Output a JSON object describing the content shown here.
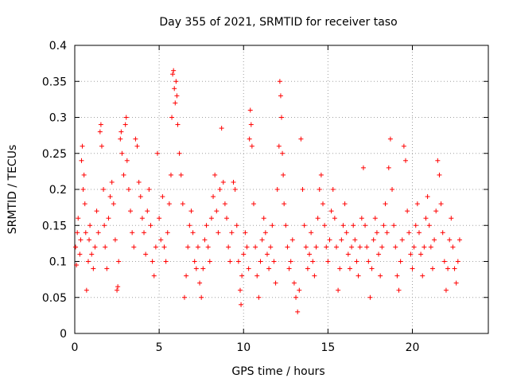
{
  "chart_data": {
    "type": "scatter",
    "title": "Day 355 of 2021, SRMTID for receiver taso",
    "xlabel": "GPS time / hours",
    "ylabel": "SRMTID / TECUs",
    "xlim": [
      0,
      24.5
    ],
    "ylim": [
      0,
      0.4
    ],
    "xticks": [
      0,
      5,
      10,
      15,
      20
    ],
    "xtick_labels": [
      "0",
      "5",
      "10",
      "15",
      "20"
    ],
    "yticks": [
      0,
      0.05,
      0.1,
      0.15,
      0.2,
      0.25,
      0.3,
      0.35,
      0.4
    ],
    "ytick_labels": [
      "0",
      "0.05",
      "0.1",
      "0.15",
      "0.2",
      "0.25",
      "0.3",
      "0.35",
      "0.4"
    ],
    "grid": true,
    "marker": "plus",
    "color": "#ff0000",
    "series": [
      {
        "name": "SRMTID",
        "points": [
          [
            0.05,
            0.12
          ],
          [
            0.1,
            0.095
          ],
          [
            0.15,
            0.14
          ],
          [
            0.2,
            0.16
          ],
          [
            0.3,
            0.11
          ],
          [
            0.35,
            0.13
          ],
          [
            0.4,
            0.24
          ],
          [
            0.45,
            0.26
          ],
          [
            0.5,
            0.2
          ],
          [
            0.55,
            0.22
          ],
          [
            0.6,
            0.18
          ],
          [
            0.65,
            0.14
          ],
          [
            0.7,
            0.06
          ],
          [
            0.8,
            0.1
          ],
          [
            0.85,
            0.13
          ],
          [
            0.9,
            0.15
          ],
          [
            1.0,
            0.11
          ],
          [
            1.1,
            0.09
          ],
          [
            1.2,
            0.12
          ],
          [
            1.3,
            0.17
          ],
          [
            1.4,
            0.14
          ],
          [
            1.5,
            0.28
          ],
          [
            1.55,
            0.29
          ],
          [
            1.6,
            0.26
          ],
          [
            1.7,
            0.2
          ],
          [
            1.75,
            0.15
          ],
          [
            1.8,
            0.12
          ],
          [
            1.9,
            0.09
          ],
          [
            2.0,
            0.16
          ],
          [
            2.1,
            0.19
          ],
          [
            2.2,
            0.21
          ],
          [
            2.3,
            0.18
          ],
          [
            2.4,
            0.13
          ],
          [
            2.5,
            0.06
          ],
          [
            2.55,
            0.065
          ],
          [
            2.6,
            0.1
          ],
          [
            2.7,
            0.27
          ],
          [
            2.75,
            0.28
          ],
          [
            2.8,
            0.25
          ],
          [
            2.9,
            0.22
          ],
          [
            3.0,
            0.29
          ],
          [
            3.05,
            0.3
          ],
          [
            3.1,
            0.24
          ],
          [
            3.2,
            0.2
          ],
          [
            3.3,
            0.17
          ],
          [
            3.4,
            0.14
          ],
          [
            3.5,
            0.12
          ],
          [
            3.6,
            0.27
          ],
          [
            3.7,
            0.26
          ],
          [
            3.8,
            0.21
          ],
          [
            3.9,
            0.19
          ],
          [
            4.0,
            0.16
          ],
          [
            4.1,
            0.14
          ],
          [
            4.2,
            0.11
          ],
          [
            4.3,
            0.17
          ],
          [
            4.4,
            0.2
          ],
          [
            4.5,
            0.15
          ],
          [
            4.6,
            0.1
          ],
          [
            4.7,
            0.08
          ],
          [
            4.8,
            0.12
          ],
          [
            4.9,
            0.25
          ],
          [
            5.0,
            0.16
          ],
          [
            5.1,
            0.13
          ],
          [
            5.2,
            0.19
          ],
          [
            5.3,
            0.12
          ],
          [
            5.4,
            0.1
          ],
          [
            5.5,
            0.14
          ],
          [
            5.6,
            0.18
          ],
          [
            5.7,
            0.22
          ],
          [
            5.75,
            0.3
          ],
          [
            5.8,
            0.36
          ],
          [
            5.85,
            0.365
          ],
          [
            5.9,
            0.34
          ],
          [
            5.95,
            0.32
          ],
          [
            6.0,
            0.35
          ],
          [
            6.05,
            0.33
          ],
          [
            6.1,
            0.29
          ],
          [
            6.2,
            0.25
          ],
          [
            6.3,
            0.22
          ],
          [
            6.4,
            0.18
          ],
          [
            6.5,
            0.05
          ],
          [
            6.6,
            0.08
          ],
          [
            6.7,
            0.12
          ],
          [
            6.8,
            0.15
          ],
          [
            6.9,
            0.17
          ],
          [
            7.0,
            0.14
          ],
          [
            7.1,
            0.1
          ],
          [
            7.2,
            0.09
          ],
          [
            7.3,
            0.12
          ],
          [
            7.4,
            0.07
          ],
          [
            7.5,
            0.05
          ],
          [
            7.6,
            0.09
          ],
          [
            7.7,
            0.13
          ],
          [
            7.8,
            0.15
          ],
          [
            7.9,
            0.12
          ],
          [
            8.0,
            0.1
          ],
          [
            8.1,
            0.16
          ],
          [
            8.2,
            0.19
          ],
          [
            8.3,
            0.22
          ],
          [
            8.4,
            0.17
          ],
          [
            8.5,
            0.14
          ],
          [
            8.6,
            0.2
          ],
          [
            8.7,
            0.285
          ],
          [
            8.8,
            0.21
          ],
          [
            8.9,
            0.18
          ],
          [
            9.0,
            0.16
          ],
          [
            9.1,
            0.12
          ],
          [
            9.2,
            0.1
          ],
          [
            9.3,
            0.14
          ],
          [
            9.4,
            0.21
          ],
          [
            9.5,
            0.2
          ],
          [
            9.6,
            0.15
          ],
          [
            9.7,
            0.1
          ],
          [
            9.8,
            0.06
          ],
          [
            9.85,
            0.04
          ],
          [
            9.9,
            0.08
          ],
          [
            10.0,
            0.11
          ],
          [
            10.1,
            0.14
          ],
          [
            10.2,
            0.12
          ],
          [
            10.3,
            0.09
          ],
          [
            10.35,
            0.27
          ],
          [
            10.4,
            0.31
          ],
          [
            10.45,
            0.29
          ],
          [
            10.5,
            0.26
          ],
          [
            10.6,
            0.18
          ],
          [
            10.7,
            0.12
          ],
          [
            10.8,
            0.08
          ],
          [
            10.9,
            0.05
          ],
          [
            11.0,
            0.1
          ],
          [
            11.1,
            0.13
          ],
          [
            11.2,
            0.16
          ],
          [
            11.3,
            0.14
          ],
          [
            11.4,
            0.11
          ],
          [
            11.5,
            0.09
          ],
          [
            11.6,
            0.12
          ],
          [
            11.7,
            0.15
          ],
          [
            11.8,
            0.1
          ],
          [
            11.9,
            0.07
          ],
          [
            12.0,
            0.2
          ],
          [
            12.1,
            0.26
          ],
          [
            12.15,
            0.35
          ],
          [
            12.2,
            0.33
          ],
          [
            12.25,
            0.3
          ],
          [
            12.3,
            0.25
          ],
          [
            12.35,
            0.22
          ],
          [
            12.4,
            0.18
          ],
          [
            12.5,
            0.15
          ],
          [
            12.6,
            0.12
          ],
          [
            12.7,
            0.09
          ],
          [
            12.8,
            0.1
          ],
          [
            12.9,
            0.13
          ],
          [
            13.0,
            0.07
          ],
          [
            13.1,
            0.05
          ],
          [
            13.2,
            0.03
          ],
          [
            13.3,
            0.06
          ],
          [
            13.4,
            0.27
          ],
          [
            13.5,
            0.2
          ],
          [
            13.6,
            0.15
          ],
          [
            13.7,
            0.12
          ],
          [
            13.8,
            0.09
          ],
          [
            13.9,
            0.11
          ],
          [
            14.0,
            0.14
          ],
          [
            14.1,
            0.1
          ],
          [
            14.2,
            0.08
          ],
          [
            14.3,
            0.12
          ],
          [
            14.4,
            0.16
          ],
          [
            14.5,
            0.2
          ],
          [
            14.6,
            0.22
          ],
          [
            14.7,
            0.18
          ],
          [
            14.8,
            0.15
          ],
          [
            14.9,
            0.12
          ],
          [
            15.0,
            0.1
          ],
          [
            15.1,
            0.13
          ],
          [
            15.2,
            0.17
          ],
          [
            15.3,
            0.2
          ],
          [
            15.4,
            0.16
          ],
          [
            15.5,
            0.12
          ],
          [
            15.6,
            0.06
          ],
          [
            15.7,
            0.09
          ],
          [
            15.8,
            0.13
          ],
          [
            15.9,
            0.15
          ],
          [
            16.0,
            0.18
          ],
          [
            16.1,
            0.14
          ],
          [
            16.2,
            0.11
          ],
          [
            16.3,
            0.09
          ],
          [
            16.4,
            0.12
          ],
          [
            16.5,
            0.15
          ],
          [
            16.6,
            0.13
          ],
          [
            16.7,
            0.1
          ],
          [
            16.8,
            0.08
          ],
          [
            16.9,
            0.12
          ],
          [
            17.0,
            0.16
          ],
          [
            17.1,
            0.23
          ],
          [
            17.2,
            0.15
          ],
          [
            17.3,
            0.12
          ],
          [
            17.4,
            0.1
          ],
          [
            17.5,
            0.05
          ],
          [
            17.6,
            0.09
          ],
          [
            17.7,
            0.13
          ],
          [
            17.8,
            0.16
          ],
          [
            17.9,
            0.14
          ],
          [
            18.0,
            0.11
          ],
          [
            18.1,
            0.08
          ],
          [
            18.2,
            0.12
          ],
          [
            18.3,
            0.15
          ],
          [
            18.4,
            0.18
          ],
          [
            18.5,
            0.14
          ],
          [
            18.6,
            0.23
          ],
          [
            18.7,
            0.27
          ],
          [
            18.8,
            0.2
          ],
          [
            18.9,
            0.15
          ],
          [
            19.0,
            0.12
          ],
          [
            19.1,
            0.08
          ],
          [
            19.2,
            0.06
          ],
          [
            19.3,
            0.1
          ],
          [
            19.4,
            0.13
          ],
          [
            19.5,
            0.26
          ],
          [
            19.6,
            0.24
          ],
          [
            19.7,
            0.17
          ],
          [
            19.8,
            0.14
          ],
          [
            19.9,
            0.11
          ],
          [
            20.0,
            0.09
          ],
          [
            20.1,
            0.12
          ],
          [
            20.2,
            0.15
          ],
          [
            20.3,
            0.18
          ],
          [
            20.4,
            0.14
          ],
          [
            20.5,
            0.11
          ],
          [
            20.6,
            0.08
          ],
          [
            20.7,
            0.12
          ],
          [
            20.8,
            0.16
          ],
          [
            20.9,
            0.19
          ],
          [
            21.0,
            0.15
          ],
          [
            21.1,
            0.12
          ],
          [
            21.2,
            0.09
          ],
          [
            21.3,
            0.13
          ],
          [
            21.4,
            0.17
          ],
          [
            21.5,
            0.24
          ],
          [
            21.6,
            0.22
          ],
          [
            21.7,
            0.18
          ],
          [
            21.8,
            0.14
          ],
          [
            21.9,
            0.1
          ],
          [
            22.0,
            0.06
          ],
          [
            22.1,
            0.09
          ],
          [
            22.2,
            0.13
          ],
          [
            22.3,
            0.16
          ],
          [
            22.4,
            0.12
          ],
          [
            22.5,
            0.09
          ],
          [
            22.6,
            0.07
          ],
          [
            22.7,
            0.1
          ],
          [
            22.8,
            0.13
          ]
        ]
      }
    ]
  }
}
